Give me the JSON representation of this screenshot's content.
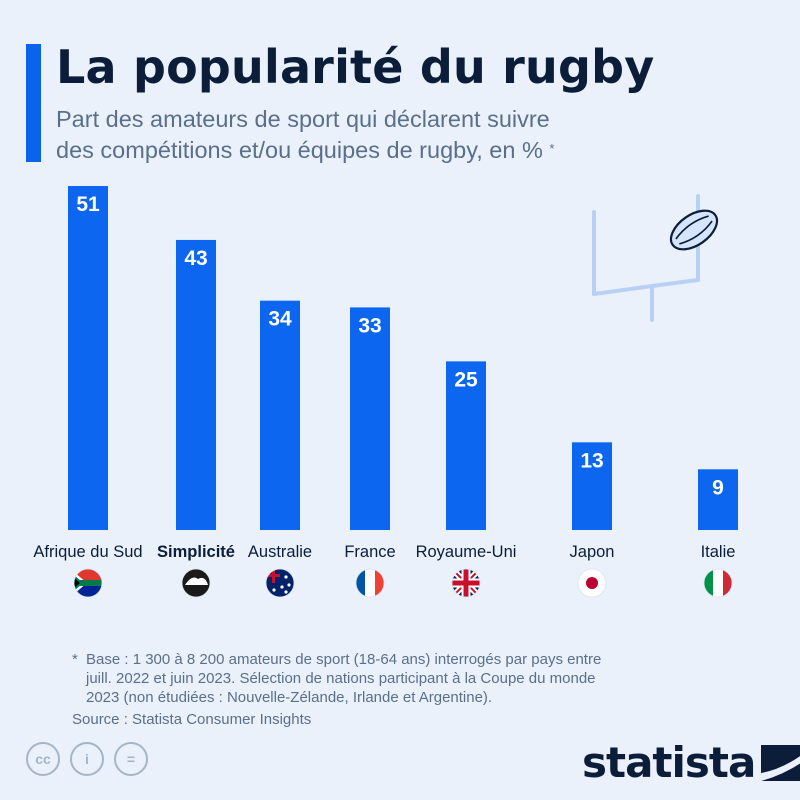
{
  "header": {
    "title": "La popularité du rugby",
    "subtitle_line1": "Part des amateurs de sport qui déclarent suivre",
    "subtitle_line2": "des compétitions et/ou équipes de rugby, en %",
    "subtitle_mark": "*"
  },
  "colors": {
    "bar": "#0c66f0",
    "accent": "#0a63ec",
    "background": "#eaf1fb",
    "text": "#0b1d38",
    "muted": "#5a6f8a"
  },
  "chart_data": {
    "type": "bar",
    "categories": [
      "Afrique du Sud",
      "Simplicité",
      "Australie",
      "France",
      "Royaume-Uni",
      "Japon",
      "Italie"
    ],
    "values": [
      51,
      43,
      34,
      33,
      25,
      13,
      9
    ],
    "flags": [
      "south-africa-flag-icon",
      "new-zealand-fern-icon",
      "australia-flag-icon",
      "france-flag-icon",
      "uk-flag-icon",
      "japan-flag-icon",
      "italy-flag-icon"
    ],
    "title": "La popularité du rugby",
    "xlabel": "",
    "ylabel": "",
    "ylim": [
      0,
      51
    ],
    "grid": false,
    "data_labels": true,
    "decoration": [
      "rugby-posts-icon",
      "rugby-ball-icon"
    ]
  },
  "footer": {
    "note_mark": "*",
    "note_line1": "Base : 1 300 à 8 200 amateurs de sport (18-64 ans) interrogés par pays entre",
    "note_line2": "juill. 2022 et juin 2023. Sélection de nations participant à la Coupe du monde",
    "note_line3": "2023 (non étudiées : Nouvelle-Zélande, Irlande et Argentine).",
    "source": "Source : Statista Consumer Insights",
    "cc_label": "cc",
    "by_label": "i",
    "nd_label": "=",
    "brand": "statista"
  }
}
